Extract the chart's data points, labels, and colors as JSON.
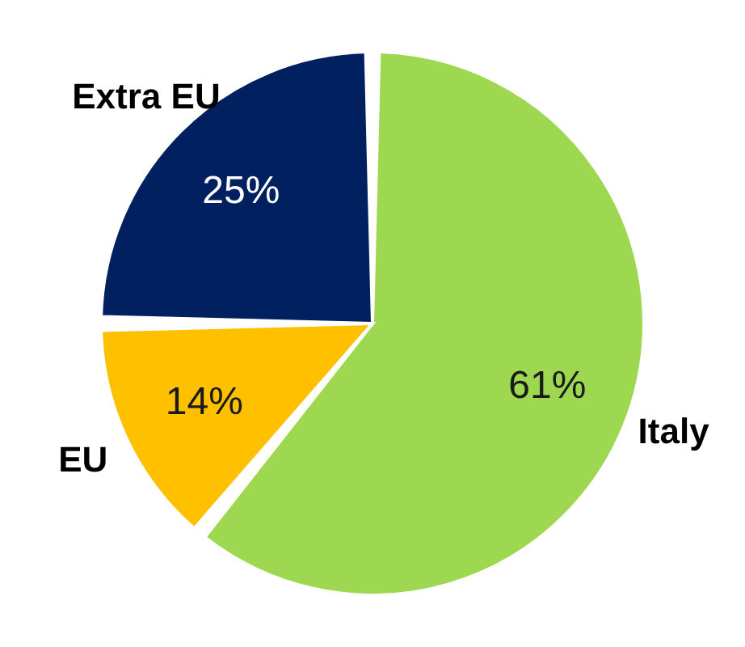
{
  "chart_data": {
    "type": "pie",
    "categories": [
      "Italy",
      "EU",
      "Extra EU"
    ],
    "values": [
      61,
      14,
      25
    ],
    "colors": [
      "#9ed850",
      "#ffc000",
      "#002060"
    ],
    "value_labels": [
      "61%",
      "14%",
      "25%"
    ],
    "legend": false
  }
}
